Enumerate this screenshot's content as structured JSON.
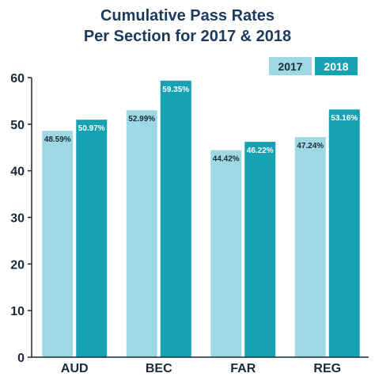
{
  "chart_data": {
    "type": "bar",
    "title_line1": "Cumulative Pass Rates",
    "title_line2": "Per Section for 2017 & 2018",
    "categories": [
      "AUD",
      "BEC",
      "FAR",
      "REG"
    ],
    "series": [
      {
        "name": "2017",
        "values": [
          48.59,
          52.99,
          44.42,
          47.24
        ],
        "labels": [
          "48.59%",
          "52.99%",
          "44.42%",
          "47.24%"
        ],
        "color": "#9ed9e3",
        "label_color": "#1b2a3a"
      },
      {
        "name": "2018",
        "values": [
          50.97,
          59.35,
          46.22,
          53.16
        ],
        "labels": [
          "50.97%",
          "59.35%",
          "46.22%",
          "53.16%"
        ],
        "color": "#17a2b3",
        "label_color": "#ffffff"
      }
    ],
    "yticks": [
      "0",
      "10",
      "20",
      "30",
      "40",
      "50",
      "60"
    ],
    "ylim": [
      0,
      60
    ],
    "grid": false,
    "legend_position": "top-right"
  }
}
